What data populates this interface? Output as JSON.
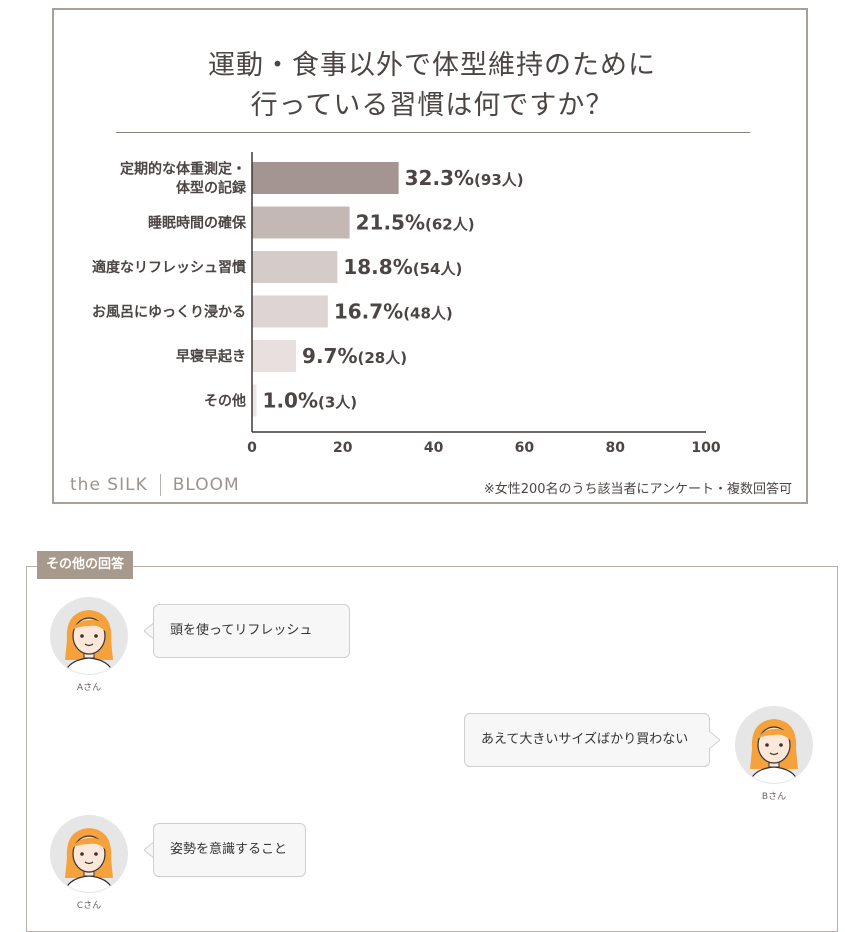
{
  "chart": {
    "title_line1": "運動・食事以外で体型維持のために",
    "title_line2": "行っている習慣は何ですか？",
    "brand_left": "the SILK",
    "brand_right": "BLOOM",
    "note": "※女性200名のうち該当者にアンケート・複数回答可"
  },
  "chart_data": {
    "type": "bar",
    "orientation": "horizontal",
    "categories": [
      [
        "定期的な体重測定・",
        "体型の記録"
      ],
      [
        "睡眠時間の確保"
      ],
      [
        "適度なリフレッシュ習慣"
      ],
      [
        "お風呂にゆっくり浸かる"
      ],
      [
        "早寝早起き"
      ],
      [
        "その他"
      ]
    ],
    "values": [
      32.3,
      21.5,
      18.8,
      16.7,
      9.7,
      1.0
    ],
    "value_labels": [
      "32.3%",
      "21.5%",
      "18.8%",
      "16.7%",
      "9.7%",
      "1.0%"
    ],
    "count_labels": [
      "(93人)",
      "(62人)",
      "(54人)",
      "(48人)",
      "(28人)",
      "(3人)"
    ],
    "bar_colors": [
      "#a49592",
      "#c4b8b5",
      "#d5cbc9",
      "#ddd4d3",
      "#e7e0df",
      "#ece7e6"
    ],
    "xlim": [
      0,
      100
    ],
    "xticks": [
      "0",
      "20",
      "40",
      "60",
      "80",
      "100"
    ],
    "grid": false
  },
  "answers": {
    "tag": "その他の回答",
    "items": [
      {
        "name": "Aさん",
        "text": "頭を使ってリフレッシュ",
        "side": "left"
      },
      {
        "name": "Bさん",
        "text": "あえて大きいサイズばかり買わない",
        "side": "right"
      },
      {
        "name": "Cさん",
        "text": "姿勢を意識すること",
        "side": "left"
      }
    ]
  },
  "colors": {
    "avatar_bg": "#e6e6e6",
    "hair": "#f6a23c",
    "skin": "#fde7d8"
  }
}
